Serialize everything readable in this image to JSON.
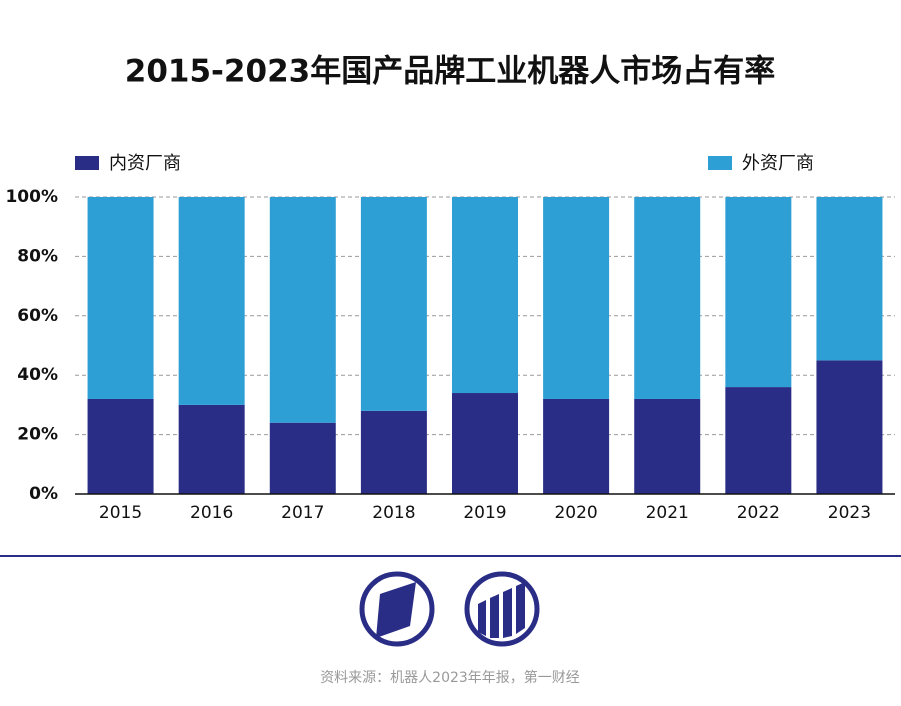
{
  "chart_data": {
    "type": "stacked_bar",
    "title": "2015-2023年国产品牌工业机器人市场占有率",
    "categories": [
      "2015",
      "2016",
      "2017",
      "2018",
      "2019",
      "2020",
      "2021",
      "2022",
      "2023"
    ],
    "series": [
      {
        "name": "内资厂商",
        "color": "#2a2d86",
        "values": [
          32,
          30,
          24,
          28,
          34,
          32,
          32,
          36,
          45
        ]
      },
      {
        "name": "外资厂商",
        "color": "#2e9fd4",
        "values": [
          68,
          70,
          76,
          72,
          66,
          68,
          68,
          64,
          55
        ]
      }
    ],
    "ylim": [
      0,
      100
    ],
    "yticks": [
      {
        "value": 0,
        "label": "0%"
      },
      {
        "value": 20,
        "label": "20%"
      },
      {
        "value": 40,
        "label": "40%"
      },
      {
        "value": 60,
        "label": "60%"
      },
      {
        "value": 80,
        "label": "80%"
      },
      {
        "value": 100,
        "label": "100%"
      }
    ],
    "grid": true,
    "source": "资料来源：机器人2023年年报，第一财经"
  }
}
